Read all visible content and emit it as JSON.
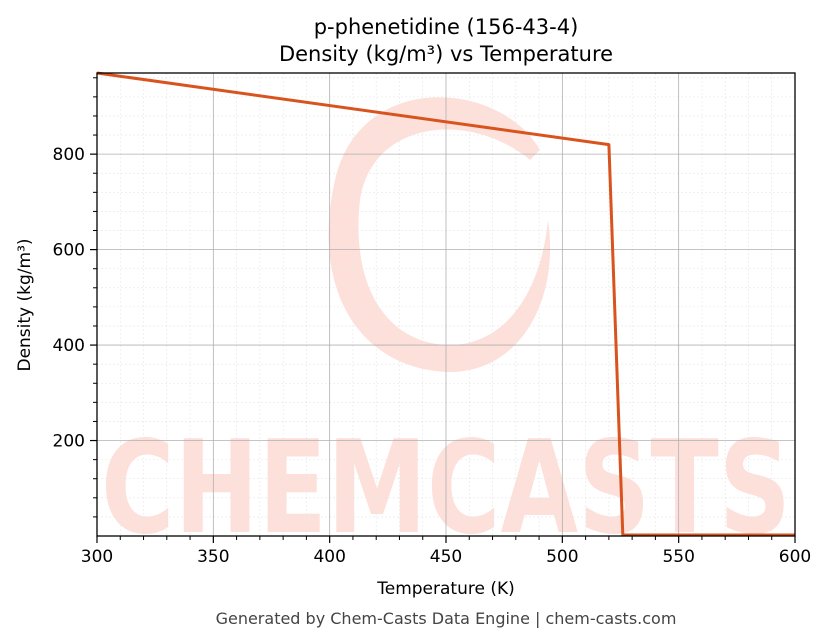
{
  "chart_data": {
    "type": "line",
    "title": "p-phenetidine (156-43-4)",
    "subtitle": "Density (kg/m³) vs Temperature",
    "xlabel": "Temperature (K)",
    "ylabel": "Density (kg/m³)",
    "xlim": [
      300,
      600
    ],
    "ylim": [
      0,
      970
    ],
    "xticks": [
      300,
      350,
      400,
      450,
      500,
      550,
      600
    ],
    "yticks": [
      200,
      400,
      600,
      800
    ],
    "grid": true,
    "series": [
      {
        "color": "#d9531e",
        "x": [
          300,
          520,
          526,
          600
        ],
        "y": [
          970,
          820,
          2,
          2
        ]
      }
    ]
  },
  "watermark": {
    "text": "CHEMCASTS",
    "color": "#fde0da"
  },
  "footer": {
    "text": "Generated by Chem-Casts Data Engine | chem-casts.com"
  }
}
